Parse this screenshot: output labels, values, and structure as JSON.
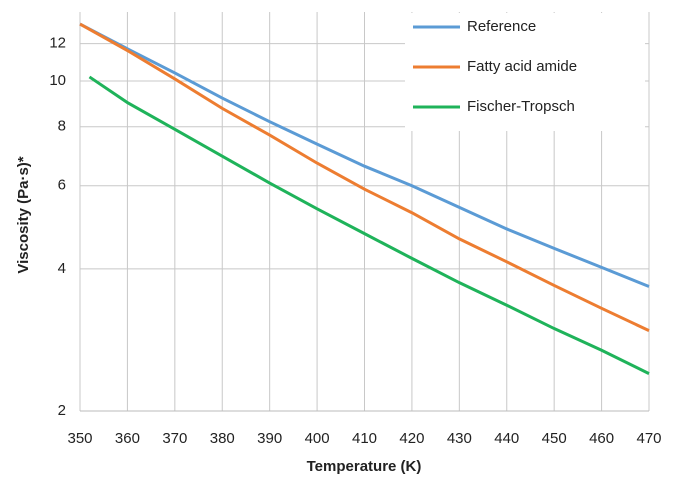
{
  "chart_data": {
    "type": "line",
    "y_label": "Viscosity (Pa·s)*",
    "x_label": "Temperature (K)",
    "xlim": [
      350,
      470
    ],
    "xticks": [
      350,
      360,
      370,
      380,
      390,
      400,
      410,
      420,
      430,
      440,
      450,
      460,
      470
    ],
    "ylim": [
      2,
      14
    ],
    "yticks": [
      2,
      4,
      6,
      8,
      10,
      12
    ],
    "log_y": true,
    "grid": true,
    "legend": "upper right",
    "series": [
      {
        "name": "Reference",
        "color": "#5b9bd5",
        "x": [
          350,
          360,
          370,
          380,
          390,
          400,
          410,
          420,
          430,
          440,
          450,
          460,
          470
        ],
        "values": [
          13.2,
          11.7,
          10.4,
          9.2,
          8.2,
          7.35,
          6.6,
          6.0,
          5.4,
          4.86,
          4.42,
          4.03,
          3.67
        ]
      },
      {
        "name": "Fatty acid amide",
        "color": "#ed7d31",
        "x": [
          350,
          360,
          370,
          380,
          390,
          400,
          410,
          420,
          430,
          440,
          450,
          460,
          470
        ],
        "values": [
          13.2,
          11.6,
          10.1,
          8.75,
          7.68,
          6.7,
          5.9,
          5.26,
          4.63,
          4.14,
          3.69,
          3.3,
          2.96
        ]
      },
      {
        "name": "Fischer-Tropsch",
        "color": "#1fb35a",
        "x": [
          352,
          360,
          370,
          380,
          390,
          400,
          410,
          420,
          430,
          440,
          450,
          460,
          470
        ],
        "values": [
          10.2,
          9.0,
          7.9,
          6.93,
          6.08,
          5.36,
          4.75,
          4.21,
          3.74,
          3.35,
          2.99,
          2.69,
          2.4
        ]
      }
    ]
  }
}
